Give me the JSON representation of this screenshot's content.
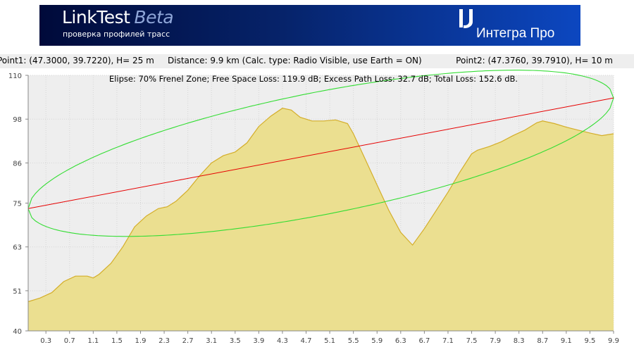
{
  "banner": {
    "app_name": "LinkTest",
    "app_edition": "Beta",
    "subtitle": "проверка профилей трасс",
    "brand": "Интегра Про",
    "colors": {
      "bg_dark": "#000a3a",
      "bg_light": "#0c47c0",
      "text": "#ffffff"
    },
    "logo_icon": "integra-logo-icon"
  },
  "info_bar": {
    "point1": "Point1: (47.3000, 39.7220), H= 25 m",
    "distance": "Distance: 9.9 km (Calc. type: Radio Visible, use Earth = ON)",
    "point2": "Point2: (47.3760, 39.7910), H= 10 m"
  },
  "chart_data": {
    "type": "area",
    "title": "Elipse: 70% Frenel Zone;  Free Space Loss: 119.9 dB;  Excess Path Loss: 32.7 dB;   Total Loss: 152.6 dB.",
    "xlabel": "",
    "ylabel": "",
    "xlim": [
      0,
      9.9
    ],
    "ylim": [
      40,
      110
    ],
    "x_ticks": [
      0.3,
      0.7,
      1.1,
      1.5,
      1.9,
      2.3,
      2.7,
      3.1,
      3.5,
      3.9,
      4.3,
      4.7,
      5.1,
      5.5,
      5.9,
      6.3,
      6.7,
      7.1,
      7.5,
      7.9,
      8.3,
      8.7,
      9.1,
      9.5,
      9.9
    ],
    "y_ticks": [
      40,
      51,
      63,
      75,
      86,
      98,
      110
    ],
    "grid": true,
    "colors": {
      "terrain_fill": "#ebdf90",
      "terrain_line": "#d4ae2a",
      "los_line": "#e60000",
      "fresnel": "#33dd33",
      "axis_bg": "#eeeeee"
    },
    "terrain": {
      "x": [
        0,
        0.2,
        0.4,
        0.6,
        0.8,
        1.0,
        1.1,
        1.2,
        1.4,
        1.6,
        1.8,
        1.9,
        2.0,
        2.2,
        2.35,
        2.5,
        2.7,
        2.9,
        3.1,
        3.3,
        3.5,
        3.7,
        3.9,
        4.1,
        4.3,
        4.45,
        4.6,
        4.8,
        5.0,
        5.2,
        5.4,
        5.5,
        5.7,
        5.9,
        6.1,
        6.3,
        6.5,
        6.7,
        6.9,
        7.1,
        7.3,
        7.5,
        7.6,
        7.8,
        8.0,
        8.2,
        8.4,
        8.6,
        8.7,
        8.9,
        9.1,
        9.3,
        9.5,
        9.7,
        9.9
      ],
      "y": [
        48,
        49,
        50.5,
        53.5,
        55,
        55,
        54.5,
        55.5,
        58.5,
        63,
        68.5,
        70,
        71.5,
        73.5,
        74,
        75.5,
        78.5,
        82.5,
        86,
        88,
        89,
        91.5,
        96,
        98.8,
        101,
        100.5,
        98.5,
        97.5,
        97.5,
        97.8,
        96.8,
        94,
        87,
        80,
        73,
        67,
        63.5,
        68,
        73,
        78,
        83.5,
        88.5,
        89.5,
        90.5,
        91.8,
        93.5,
        95,
        97,
        97.5,
        96.8,
        95.8,
        95,
        94.2,
        93.5,
        94
      ]
    },
    "line_of_sight": {
      "x": [
        0,
        9.9
      ],
      "y": [
        73.5,
        103.8
      ]
    },
    "fresnel_ellipse": {
      "upper_max_offset": 17,
      "lower_max_offset": 17
    }
  }
}
